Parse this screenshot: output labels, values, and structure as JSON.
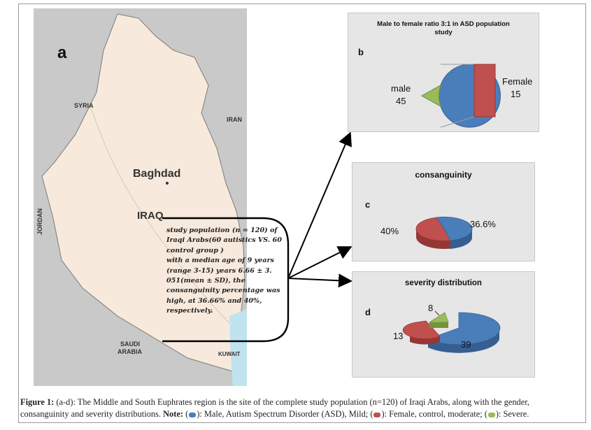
{
  "map": {
    "panel_letter": "a",
    "labels": {
      "syria": "SYRIA",
      "iran": "IRAN",
      "jordan": "JORDAN",
      "baghdad": "Baghdad",
      "iraq": "IRAQ",
      "saudi_line1": "SAUDI",
      "saudi_line2": "ARABIA",
      "kuwait": "KUWAIT"
    },
    "colors": {
      "land": "#f7eadc",
      "surround": "#c9c9c9",
      "border": "#8a8a8a"
    }
  },
  "study_note": {
    "lines": [
      "study population  (n = 120) of",
      "Iraqi Arabs(60 autistics VS. 60",
      "control group )",
      "with a median age of 9 years",
      "(range 3-15) years 6.66 ± 3.",
      "051(mean ± SD), the",
      "consanguinity  percentage was",
      "high, at 36.66% and 40%,",
      "respectively."
    ]
  },
  "panels": {
    "b": {
      "letter": "b",
      "title_line1": "Male to female ratio 3:1 in ASD population",
      "title_line2": "study",
      "male_label": "male",
      "male_value": "45",
      "female_label": "Female",
      "female_value": "15"
    },
    "c": {
      "letter": "c",
      "title": "consanguinity",
      "left_label": "40%",
      "right_label": "36.6%"
    },
    "d": {
      "letter": "d",
      "title": "severity distribution",
      "labels": [
        "39",
        "13",
        "8"
      ]
    }
  },
  "colors": {
    "male_blue": "#4a7ebb",
    "female_red": "#c0504d",
    "severe_green": "#9bbb59",
    "panel_bg": "#e6e6e6"
  },
  "chart_data": [
    {
      "type": "pie",
      "title": "Male to female ratio 3:1 in ASD population study",
      "categories": [
        "male",
        "Female"
      ],
      "values": [
        45,
        15
      ]
    },
    {
      "type": "pie",
      "title": "consanguinity",
      "values": [
        36.6,
        40
      ]
    },
    {
      "type": "pie",
      "title": "severity distribution",
      "values": [
        39,
        13,
        8
      ]
    }
  ],
  "caption": {
    "figure_label": "Figure 1:",
    "text1": " (a-d): The Middle and South Euphrates region is the site of the complete study population (n=120) of Iraqi Arabs, along with the gender, consanguinity and severity distributions. ",
    "note_label": "Note:",
    "text2": " (",
    "text3": "): Male, Autism Spectrum Disorder (ASD), Mild; (",
    "text4": "): Female, control, moderate; (",
    "text5": "): Severe."
  }
}
